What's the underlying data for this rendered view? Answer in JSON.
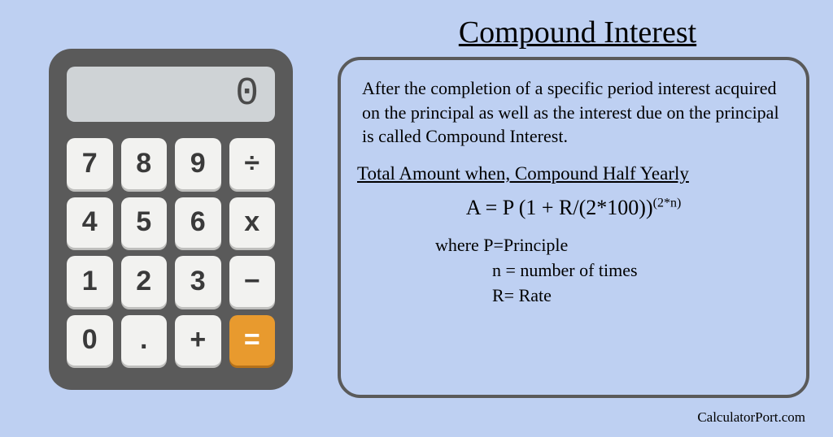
{
  "page": {
    "background_color": "#bed0f2"
  },
  "calculator": {
    "body_color": "#5a5a5a",
    "screen_color": "#cfd3d6",
    "key_color": "#f2f2f0",
    "equals_color": "#e89a2e",
    "display_value": "0",
    "keys": {
      "k7": "7",
      "k8": "8",
      "k9": "9",
      "divide": "÷",
      "k4": "4",
      "k5": "5",
      "k6": "6",
      "multiply": "x",
      "k1": "1",
      "k2": "2",
      "k3": "3",
      "minus": "−",
      "k0": "0",
      "dot": ".",
      "plus": "+",
      "equals": "="
    }
  },
  "title": "Compound Interest",
  "definition": "After the completion of a specific period interest acquired on the principal as well as the interest due on the principal is called Compound Interest.",
  "subheading": "Total Amount when, Compound Half Yearly",
  "formula": {
    "base": "A = P (1 + R/(2*100))",
    "exponent": "(2*n)"
  },
  "where": {
    "line1": "where P=Principle",
    "line2": "n = number of times",
    "line3": "R= Rate"
  },
  "footer": "CalculatorPort.com",
  "info_box": {
    "border_color": "#5a5a5a"
  }
}
